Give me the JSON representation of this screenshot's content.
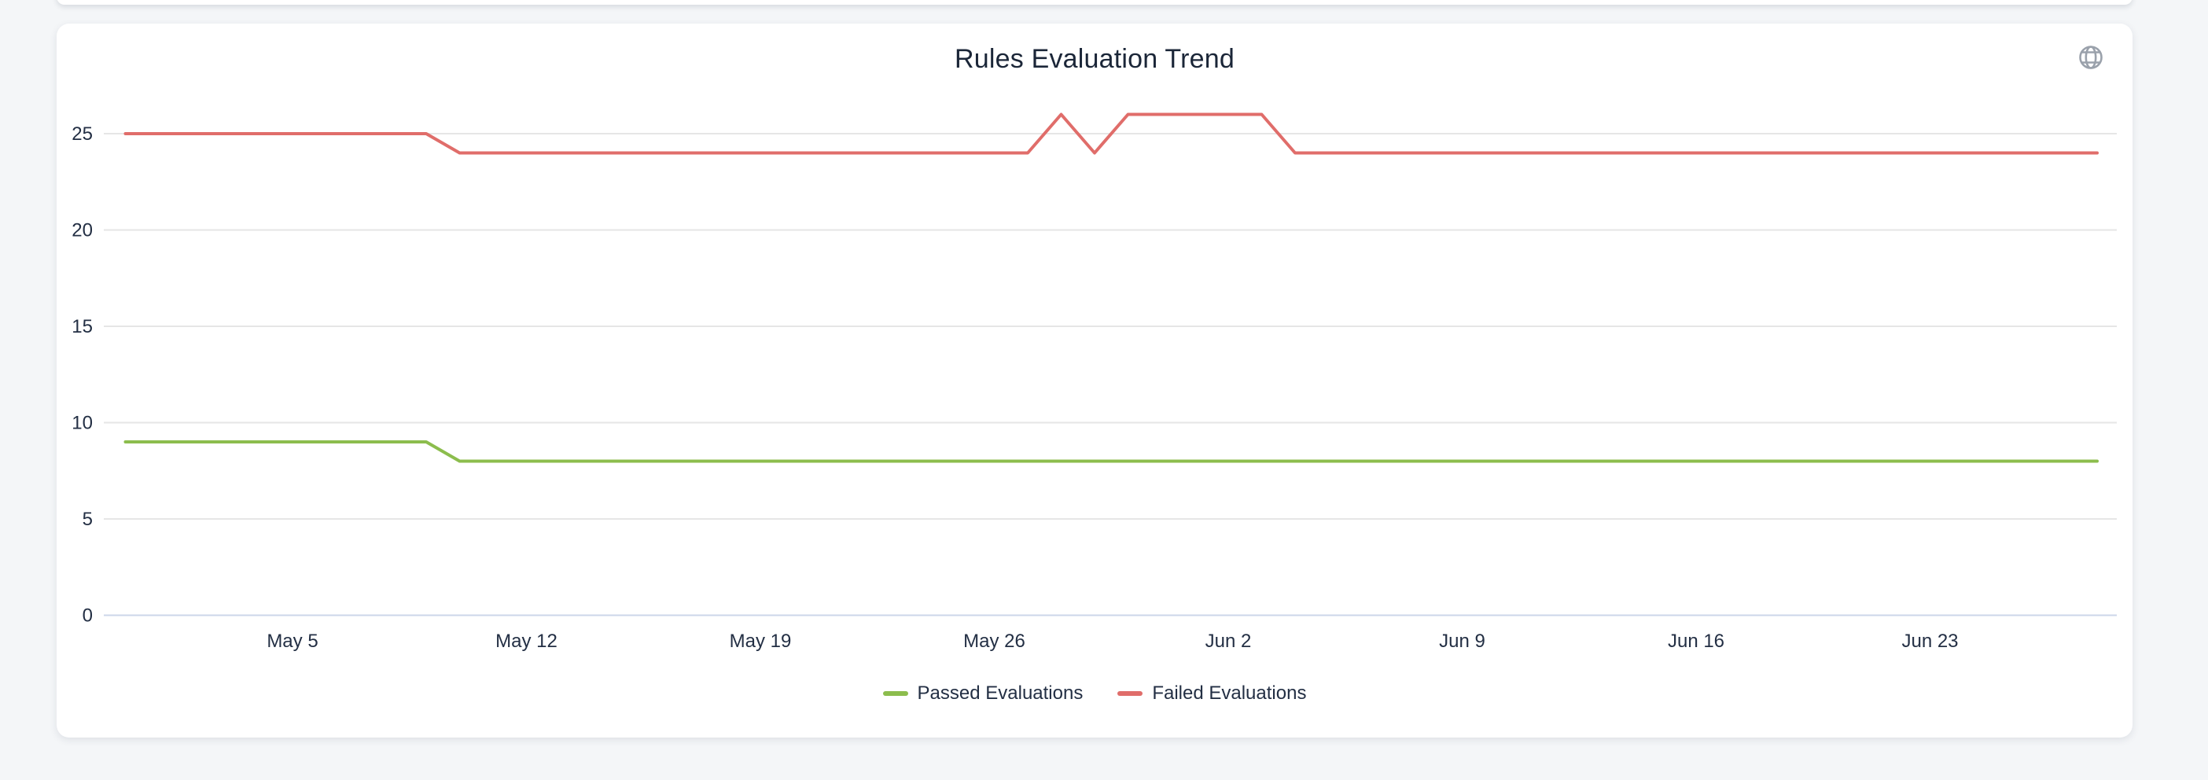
{
  "colors": {
    "page_background": "#f4f6f8",
    "card_background": "#ffffff",
    "title_text": "#1b2638",
    "tick_text": "#232f44",
    "gridline": "#e6e6e6",
    "axis_line": "#ccd6ea",
    "globe_icon": "#9aa1ab",
    "passed_series": "#8cbd4d",
    "failed_series": "#e06d6a"
  },
  "icons": {
    "top_right": "globe"
  },
  "chart_data": {
    "type": "line",
    "title": "Rules Evaluation Trend",
    "xlabel": "",
    "ylabel": "",
    "grid": true,
    "legend_position": "bottom",
    "ylim": [
      0,
      26.5
    ],
    "yticks": [
      0,
      5,
      10,
      15,
      20,
      25
    ],
    "xticks": {
      "labels": [
        "May 5",
        "May 12",
        "May 19",
        "May 26",
        "Jun 2",
        "Jun 9",
        "Jun 16",
        "Jun 23"
      ],
      "day_index": [
        5,
        12,
        19,
        26,
        33,
        40,
        47,
        54
      ]
    },
    "x": [
      "Apr 30",
      "May 1",
      "May 2",
      "May 3",
      "May 4",
      "May 5",
      "May 6",
      "May 7",
      "May 8",
      "May 9",
      "May 10",
      "May 11",
      "May 12",
      "May 13",
      "May 14",
      "May 15",
      "May 16",
      "May 17",
      "May 18",
      "May 19",
      "May 20",
      "May 21",
      "May 22",
      "May 23",
      "May 24",
      "May 25",
      "May 26",
      "May 27",
      "May 28",
      "May 29",
      "May 30",
      "May 31",
      "Jun 1",
      "Jun 2",
      "Jun 3",
      "Jun 4",
      "Jun 5",
      "Jun 6",
      "Jun 7",
      "Jun 8",
      "Jun 9",
      "Jun 10",
      "Jun 11",
      "Jun 12",
      "Jun 13",
      "Jun 14",
      "Jun 15",
      "Jun 16",
      "Jun 17",
      "Jun 18",
      "Jun 19",
      "Jun 20",
      "Jun 21",
      "Jun 22",
      "Jun 23",
      "Jun 24",
      "Jun 25",
      "Jun 26",
      "Jun 27",
      "Jun 28"
    ],
    "series": [
      {
        "name": "Passed Evaluations",
        "color": "#8cbd4d",
        "values": [
          9,
          9,
          9,
          9,
          9,
          9,
          9,
          9,
          9,
          9,
          8,
          8,
          8,
          8,
          8,
          8,
          8,
          8,
          8,
          8,
          8,
          8,
          8,
          8,
          8,
          8,
          8,
          8,
          8,
          8,
          8,
          8,
          8,
          8,
          8,
          8,
          8,
          8,
          8,
          8,
          8,
          8,
          8,
          8,
          8,
          8,
          8,
          8,
          8,
          8,
          8,
          8,
          8,
          8,
          8,
          8,
          8,
          8,
          8,
          8
        ]
      },
      {
        "name": "Failed Evaluations",
        "color": "#e06d6a",
        "values": [
          25,
          25,
          25,
          25,
          25,
          25,
          25,
          25,
          25,
          25,
          24,
          24,
          24,
          24,
          24,
          24,
          24,
          24,
          24,
          24,
          24,
          24,
          24,
          24,
          24,
          24,
          24,
          24,
          26,
          24,
          26,
          26,
          26,
          26,
          26,
          24,
          24,
          24,
          24,
          24,
          24,
          24,
          24,
          24,
          24,
          24,
          24,
          24,
          24,
          24,
          24,
          24,
          24,
          24,
          24,
          24,
          24,
          24,
          24,
          24
        ]
      }
    ]
  }
}
